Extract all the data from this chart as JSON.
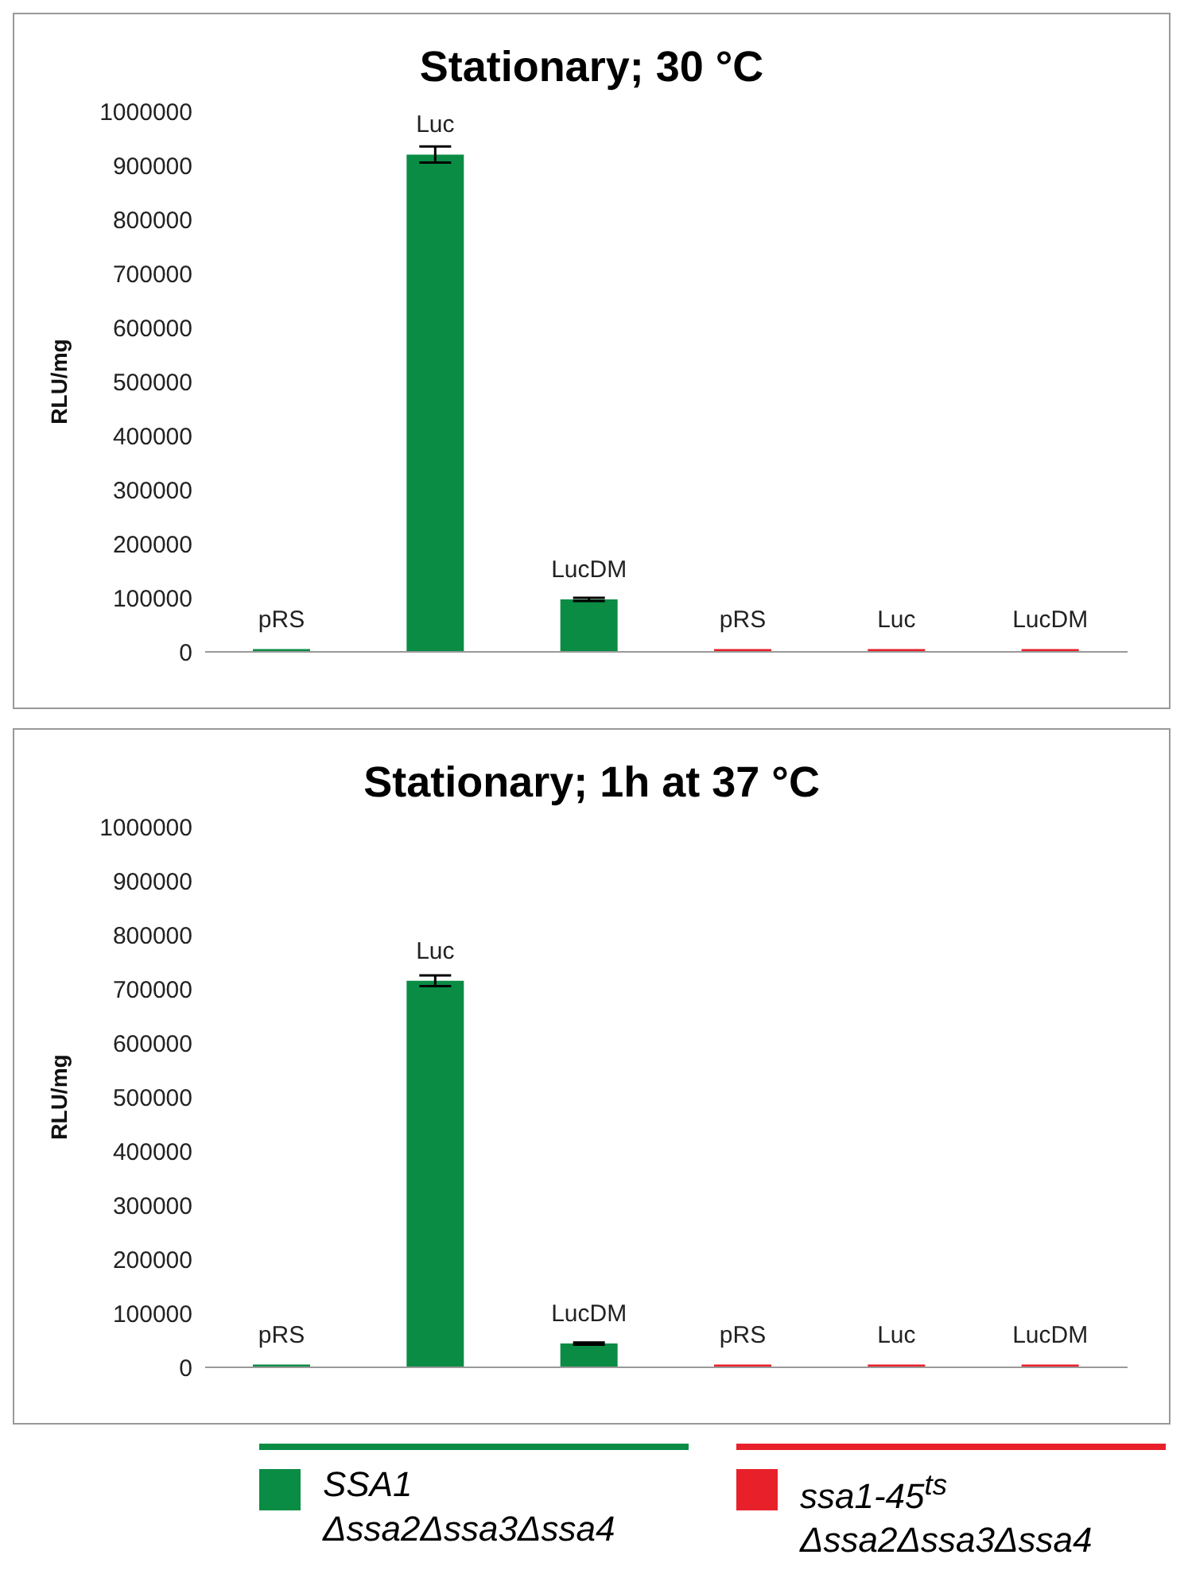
{
  "chart_data": [
    {
      "type": "bar",
      "title": "Stationary; 30 °C",
      "ylabel": "RLU/mg",
      "categories": [
        "pRS",
        "Luc",
        "LucDM",
        "pRS",
        "Luc",
        "LucDM"
      ],
      "ylim": [
        0,
        1000000
      ],
      "yticks": [
        0,
        100000,
        200000,
        300000,
        400000,
        500000,
        600000,
        700000,
        800000,
        900000,
        1000000
      ],
      "grid": false,
      "legend": false,
      "series": [
        {
          "color": "#0a8c44",
          "values": [
            5000,
            920000,
            97000,
            null,
            null,
            null
          ],
          "errors": [
            null,
            15000,
            3000,
            null,
            null,
            null
          ]
        },
        {
          "color": "#e8202a",
          "values": [
            null,
            null,
            null,
            5000,
            5000,
            5000
          ]
        }
      ]
    },
    {
      "type": "bar",
      "title": "Stationary; 1h at 37 °C",
      "ylabel": "RLU/mg",
      "categories": [
        "pRS",
        "Luc",
        "LucDM",
        "pRS",
        "Luc",
        "LucDM"
      ],
      "ylim": [
        0,
        1000000
      ],
      "yticks": [
        0,
        100000,
        200000,
        300000,
        400000,
        500000,
        600000,
        700000,
        800000,
        900000,
        1000000
      ],
      "grid": false,
      "legend": "bottom",
      "series": [
        {
          "name": "SSA1 Δssa2Δssa3Δssa4",
          "color": "#0a8c44",
          "values": [
            5000,
            715000,
            44000,
            null,
            null,
            null
          ],
          "errors": [
            null,
            10000,
            2000,
            null,
            null,
            null
          ]
        },
        {
          "name": "ssa1-45$^{ts}$ Δssa2Δssa3Δssa4",
          "color": "#e8202a",
          "values": [
            null,
            null,
            null,
            5000,
            5000,
            5000
          ]
        }
      ]
    }
  ]
}
